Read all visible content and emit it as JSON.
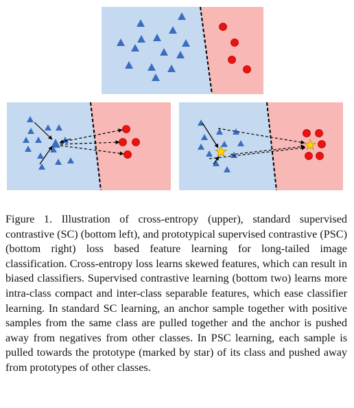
{
  "figure": {
    "caption": "Figure 1. Illustration of cross-entropy (upper), standard supervised contrastive (SC) (bottom left), and prototypical supervised contrastive (PSC) (bottom right) loss based feature learning for long-tailed image classification. Cross-entropy loss learns skewed features, which can result in biased classifiers. Supervised contrastive learning (bottom two) learns more intra-class compact and inter-class separable features, which ease classifier learning. In standard SC learning, an anchor sample together with positive samples from the same class are pulled together and the anchor is pushed away from negatives from other classes. In PSC learning, each sample is pulled towards the prototype (marked by star) of its class and pushed away from prototypes of other classes."
  },
  "colors": {
    "blue_region": "#c5d9f1",
    "red_region": "#f8b8b6",
    "triangle": "#3b6dbf",
    "circle": "#ee1111",
    "star": "#ffd700"
  }
}
